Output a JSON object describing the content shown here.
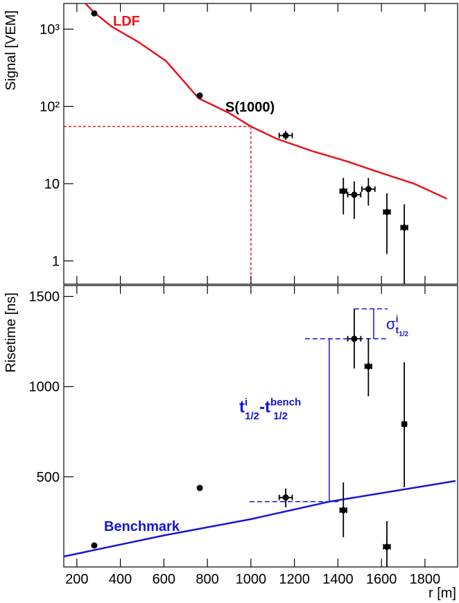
{
  "chart_data": [
    {
      "type": "scatter",
      "ylabel": "Signal [VEM]",
      "log_y": true,
      "xlim": [
        140,
        1950
      ],
      "ylim": [
        0.5,
        2150
      ],
      "xticks": [
        200,
        400,
        600,
        800,
        1000,
        1200,
        1400,
        1600,
        1800
      ],
      "yticks": [
        1,
        10,
        {
          "value": 100,
          "label": "10²"
        },
        {
          "value": 1000,
          "label": "10³"
        }
      ],
      "points": {
        "color": "#000000",
        "x": [
          280,
          765,
          1160,
          1425,
          1475,
          1540,
          1625,
          1705
        ],
        "y": [
          1600,
          138,
          42,
          8.0,
          7.2,
          8.5,
          4.3,
          2.7
        ],
        "ylow": [
          null,
          null,
          37,
          4.0,
          3.5,
          5.2,
          1.23,
          0.3
        ],
        "yhigh": [
          null,
          null,
          48,
          11.9,
          10.7,
          11.9,
          7.5,
          5.4
        ],
        "xerr": [
          null,
          null,
          30,
          15,
          30,
          30,
          15,
          15
        ]
      },
      "curve": {
        "name": "LDF",
        "color": "#e8141c",
        "x": [
          240,
          280,
          360,
          480,
          610,
          760,
          900,
          1000,
          1120,
          1280,
          1440,
          1600,
          1750,
          1900
        ],
        "y": [
          2140,
          1640,
          1080,
          690,
          386,
          127,
          82,
          55,
          38,
          26.5,
          19.5,
          13.7,
          10,
          6.4
        ]
      },
      "annotation": "S(1000)"
    },
    {
      "type": "scatter",
      "ylabel": "Risetime [ns]",
      "xlabel": "r [m]",
      "log_y": false,
      "xlim": [
        140,
        1950
      ],
      "ylim": [
        0,
        1560
      ],
      "xticks": [
        200,
        400,
        600,
        800,
        1000,
        1200,
        1400,
        1600,
        1800
      ],
      "yticks": [
        500,
        1000,
        1500
      ],
      "points": {
        "color": "#000000",
        "x": [
          280,
          765,
          1160,
          1425,
          1475,
          1540,
          1625,
          1705
        ],
        "y": [
          119,
          438,
          385,
          315,
          1265,
          1112,
          112,
          792
        ],
        "ylow": [
          null,
          null,
          331,
          165,
          1100,
          946,
          0,
          442
        ],
        "yhigh": [
          null,
          null,
          435,
          469,
          1431,
          1269,
          254,
          1135
        ],
        "xerr": [
          null,
          null,
          30,
          15,
          30,
          15,
          15,
          10
        ]
      },
      "curve": {
        "name": "Benchmark",
        "color": "#1414dc",
        "x": [
          140,
          600,
          1000,
          1360,
          1940
        ],
        "y": [
          58,
          175,
          265,
          362,
          477
        ]
      },
      "delta_label": {
        "t1": "t",
        "sup1": "i",
        "sub1": "1/2",
        "dash": "-",
        "t2": "t",
        "sup2": "bench",
        "sub2": "1/2"
      },
      "sigma_label": {
        "sigma": "σ",
        "sup": "i",
        "sub": "t",
        "subsub": "1/2"
      }
    }
  ]
}
